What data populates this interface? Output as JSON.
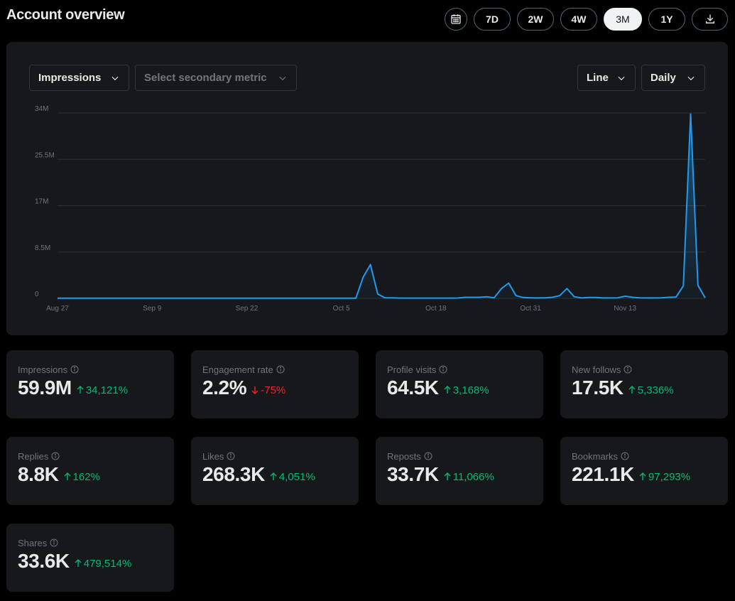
{
  "header": {
    "title": "Account overview",
    "ranges": [
      "7D",
      "2W",
      "4W",
      "3M",
      "1Y"
    ],
    "active_range": "3M"
  },
  "chart_controls": {
    "metric": "Impressions",
    "secondary_placeholder": "Select secondary metric",
    "chart_type": "Line",
    "interval": "Daily"
  },
  "chart_data": {
    "type": "area",
    "x_tick_labels": [
      "Aug 27",
      "Sep 9",
      "Sep 22",
      "Oct 5",
      "Oct 18",
      "Oct 31",
      "Nov 13"
    ],
    "y_tick_labels": [
      "0",
      "8.5M",
      "17M",
      "25.5M",
      "34M"
    ],
    "ylim": [
      0,
      34000000
    ],
    "line_color": "#1d9bf0",
    "start": "Aug 27",
    "values": [
      20000,
      20000,
      20000,
      20000,
      20000,
      20000,
      20000,
      20000,
      20000,
      20000,
      20000,
      20000,
      20000,
      20000,
      20000,
      20000,
      20000,
      20000,
      20000,
      20000,
      20000,
      20000,
      20000,
      20000,
      20000,
      20000,
      20000,
      20000,
      20000,
      20000,
      20000,
      20000,
      20000,
      20000,
      20000,
      20000,
      20000,
      20000,
      20000,
      20000,
      20000,
      20000,
      3900000,
      6200000,
      800000,
      100000,
      100000,
      50000,
      50000,
      50000,
      50000,
      50000,
      50000,
      50000,
      50000,
      60000,
      200000,
      200000,
      200000,
      300000,
      100000,
      1800000,
      2800000,
      500000,
      150000,
      100000,
      80000,
      100000,
      200000,
      500000,
      1800000,
      300000,
      80000,
      150000,
      150000,
      80000,
      80000,
      100000,
      400000,
      200000,
      100000,
      80000,
      80000,
      100000,
      200000,
      250000,
      2300000,
      33800000,
      2400000,
      100000
    ]
  },
  "stats": [
    {
      "label": "Impressions",
      "value": "59.9M",
      "change": "34,121%",
      "direction": "up"
    },
    {
      "label": "Engagement rate",
      "value": "2.2%",
      "change": "-75%",
      "direction": "down"
    },
    {
      "label": "Profile visits",
      "value": "64.5K",
      "change": "3,168%",
      "direction": "up"
    },
    {
      "label": "New follows",
      "value": "17.5K",
      "change": "5,336%",
      "direction": "up"
    },
    {
      "label": "Replies",
      "value": "8.8K",
      "change": "162%",
      "direction": "up"
    },
    {
      "label": "Likes",
      "value": "268.3K",
      "change": "4,051%",
      "direction": "up"
    },
    {
      "label": "Reposts",
      "value": "33.7K",
      "change": "11,066%",
      "direction": "up"
    },
    {
      "label": "Bookmarks",
      "value": "221.1K",
      "change": "97,293%",
      "direction": "up"
    },
    {
      "label": "Shares",
      "value": "33.6K",
      "change": "479,514%",
      "direction": "up"
    }
  ],
  "colors": {
    "up": "#00ba7c",
    "down": "#f4212e",
    "accent": "#1d9bf0"
  }
}
